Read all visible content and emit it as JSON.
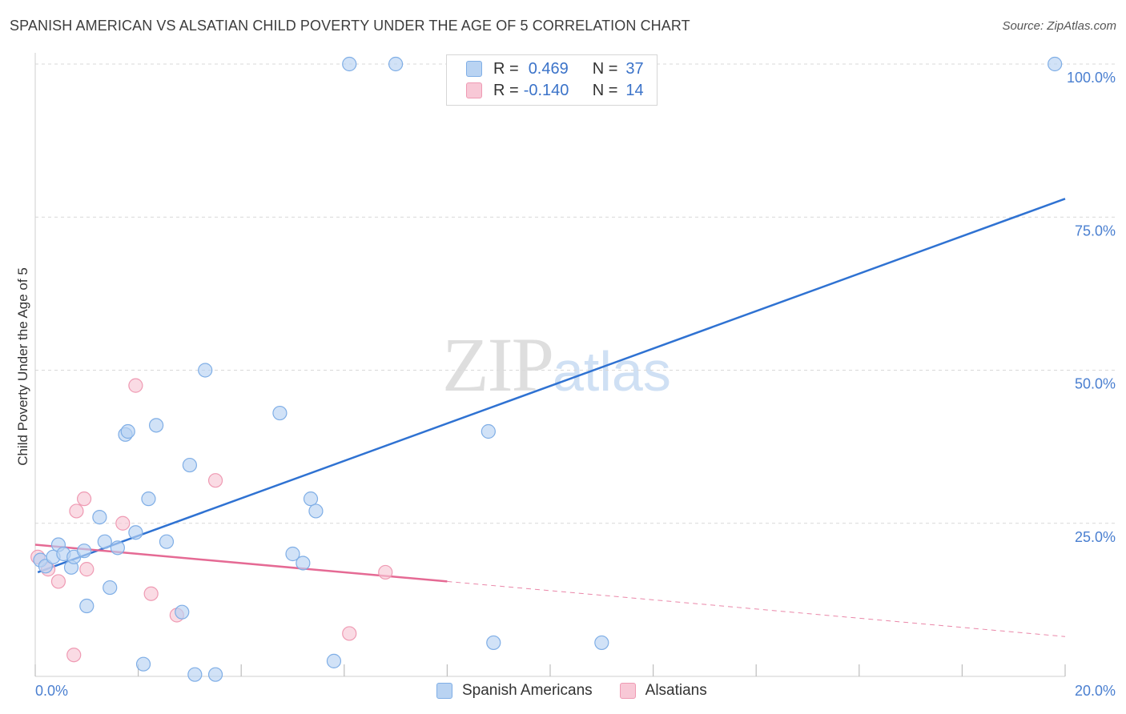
{
  "header": {
    "title": "SPANISH AMERICAN VS ALSATIAN CHILD POVERTY UNDER THE AGE OF 5 CORRELATION CHART",
    "source": "Source: ZipAtlas.com"
  },
  "watermark": {
    "zip": "ZIP",
    "atlas": "atlas"
  },
  "colors": {
    "blue_fill": "#b9d3f2",
    "blue_stroke": "#7faee6",
    "blue_line": "#2f72d2",
    "pink_fill": "#f8c8d6",
    "pink_stroke": "#ef9ab3",
    "pink_line": "#e56a94",
    "grid": "#d9d9d9",
    "tick_text": "#4a7fd0"
  },
  "legend": {
    "rows": [
      {
        "r_label": "R =",
        "r_value": "0.469",
        "n_label": "N =",
        "n_value": "37"
      },
      {
        "r_label": "R =",
        "r_value": "-0.140",
        "n_label": "N =",
        "n_value": "14"
      }
    ]
  },
  "bottom_legend": {
    "items": [
      "Spanish Americans",
      "Alsatians"
    ]
  },
  "chart_data": {
    "type": "scatter",
    "title": "SPANISH AMERICAN VS ALSATIAN CHILD POVERTY UNDER THE AGE OF 5 CORRELATION CHART",
    "xlabel": "",
    "ylabel": "Child Poverty Under the Age of 5",
    "xlim": [
      0,
      20
    ],
    "ylim": [
      0,
      100
    ],
    "x_ticks": [
      0,
      2,
      4,
      6,
      8,
      10,
      12,
      14,
      16,
      18,
      20
    ],
    "x_tick_labels_shown": {
      "0": "0.0%",
      "20": "20.0%"
    },
    "y_ticks": [
      25,
      50,
      75,
      100
    ],
    "y_tick_labels": [
      "25.0%",
      "50.0%",
      "75.0%",
      "100.0%"
    ],
    "series": [
      {
        "name": "Spanish Americans",
        "R": 0.469,
        "N": 37,
        "points": [
          [
            0.1,
            19.0
          ],
          [
            0.2,
            18.0
          ],
          [
            0.35,
            19.5
          ],
          [
            0.45,
            21.5
          ],
          [
            0.55,
            20.0
          ],
          [
            0.7,
            17.8
          ],
          [
            0.75,
            19.5
          ],
          [
            0.95,
            20.5
          ],
          [
            1.0,
            11.5
          ],
          [
            1.25,
            26.0
          ],
          [
            1.35,
            22.0
          ],
          [
            1.45,
            14.5
          ],
          [
            1.6,
            21.0
          ],
          [
            1.75,
            39.5
          ],
          [
            1.8,
            40.0
          ],
          [
            1.95,
            23.5
          ],
          [
            2.1,
            2.0
          ],
          [
            2.2,
            29.0
          ],
          [
            2.35,
            41.0
          ],
          [
            2.55,
            22.0
          ],
          [
            2.85,
            10.5
          ],
          [
            3.0,
            34.5
          ],
          [
            3.1,
            0.3
          ],
          [
            3.3,
            50.0
          ],
          [
            3.5,
            0.3
          ],
          [
            4.75,
            43.0
          ],
          [
            5.0,
            20.0
          ],
          [
            5.2,
            18.5
          ],
          [
            5.35,
            29.0
          ],
          [
            5.45,
            27.0
          ],
          [
            5.8,
            2.5
          ],
          [
            6.1,
            100.0
          ],
          [
            7.0,
            100.0
          ],
          [
            8.8,
            40.0
          ],
          [
            8.9,
            5.5
          ],
          [
            11.0,
            5.5
          ],
          [
            19.8,
            100.0
          ]
        ],
        "trend": {
          "x": [
            0.05,
            20.0
          ],
          "y": [
            17.0,
            78.0
          ]
        }
      },
      {
        "name": "Alsatians",
        "R": -0.14,
        "N": 14,
        "points": [
          [
            0.05,
            19.5
          ],
          [
            0.25,
            17.5
          ],
          [
            0.45,
            15.5
          ],
          [
            0.75,
            3.5
          ],
          [
            0.8,
            27.0
          ],
          [
            0.95,
            29.0
          ],
          [
            1.0,
            17.5
          ],
          [
            1.7,
            25.0
          ],
          [
            1.95,
            47.5
          ],
          [
            2.25,
            13.5
          ],
          [
            2.75,
            10.0
          ],
          [
            3.5,
            32.0
          ],
          [
            6.1,
            7.0
          ],
          [
            6.8,
            17.0
          ]
        ],
        "trend": {
          "x": [
            0.0,
            8.0
          ],
          "y": [
            21.5,
            15.5
          ]
        },
        "trend_extension": {
          "x": [
            8.0,
            20.0
          ],
          "y": [
            15.5,
            6.5
          ]
        }
      }
    ]
  }
}
